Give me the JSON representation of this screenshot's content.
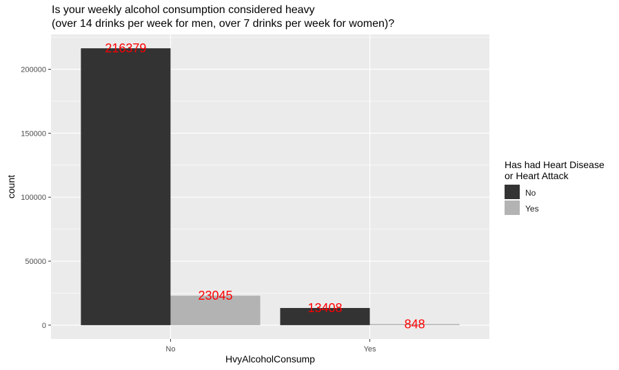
{
  "chart_data": {
    "type": "bar",
    "title": [
      "Is your weekly alcohol consumption considered heavy",
      "(over 14 drinks per week for men, over 7 drinks per week for women)?"
    ],
    "xlabel": "HvyAlcoholConsump",
    "ylabel": "count",
    "categories": [
      "No",
      "Yes"
    ],
    "series": [
      {
        "name": "No",
        "color": "#333333",
        "values": [
          216379,
          13408
        ]
      },
      {
        "name": "Yes",
        "color": "#b3b3b3",
        "values": [
          23045,
          848
        ]
      }
    ],
    "data_labels": [
      [
        "216379",
        "13408"
      ],
      [
        "23045",
        "848"
      ]
    ],
    "data_label_color": "#ff0000",
    "ylim": [
      -10819,
      227198
    ],
    "yticks": [
      0,
      50000,
      100000,
      150000,
      200000
    ],
    "ytick_labels": [
      "0",
      "50000",
      "100000",
      "150000",
      "200000"
    ],
    "grid": true,
    "legend": {
      "title": [
        "Has had Heart Disease",
        "or Heart Attack"
      ],
      "entries": [
        "No",
        "Yes"
      ],
      "position": "right"
    }
  }
}
